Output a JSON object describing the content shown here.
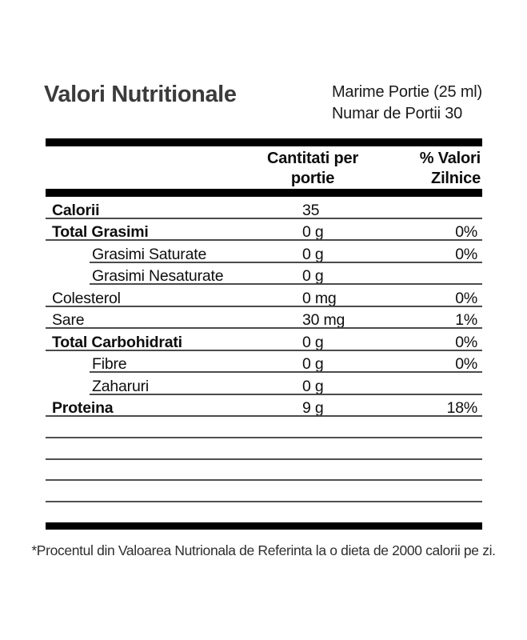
{
  "title": "Valori Nutritionale",
  "serving": {
    "size": "Marime Portie (25 ml)",
    "count": "Numar de Portii 30"
  },
  "table": {
    "col_amount_header": "Cantitati per portie",
    "col_dv_header": "% Valori Zilnice",
    "rows": [
      {
        "label": "Calorii",
        "amount": "35",
        "dv": ""
      },
      {
        "label": "Total Grasimi",
        "amount": "0 g",
        "dv": "0%"
      },
      {
        "label": "Grasimi Saturate",
        "amount": "0 g",
        "dv": "0%"
      },
      {
        "label": "Grasimi Nesaturate",
        "amount": "0 g",
        "dv": ""
      },
      {
        "label": "Colesterol",
        "amount": "0 mg",
        "dv": "0%"
      },
      {
        "label": "Sare",
        "amount": "30 mg",
        "dv": "1%"
      },
      {
        "label": "Total Carbohidrati",
        "amount": "0 g",
        "dv": "0%"
      },
      {
        "label": "Fibre",
        "amount": "0 g",
        "dv": "0%"
      },
      {
        "label": "Zaharuri",
        "amount": "0 g",
        "dv": ""
      },
      {
        "label": "Proteina",
        "amount": "9 g",
        "dv": "18%"
      }
    ]
  },
  "footnote": "*Procentul din Valoarea Nutrionala de Referinta la o dieta de 2000 calorii pe zi.",
  "colors": {
    "bar": "#000000",
    "rule": "#4a4a4a",
    "title": "#3b3b3b",
    "text": "#111111",
    "background": "#ffffff"
  }
}
